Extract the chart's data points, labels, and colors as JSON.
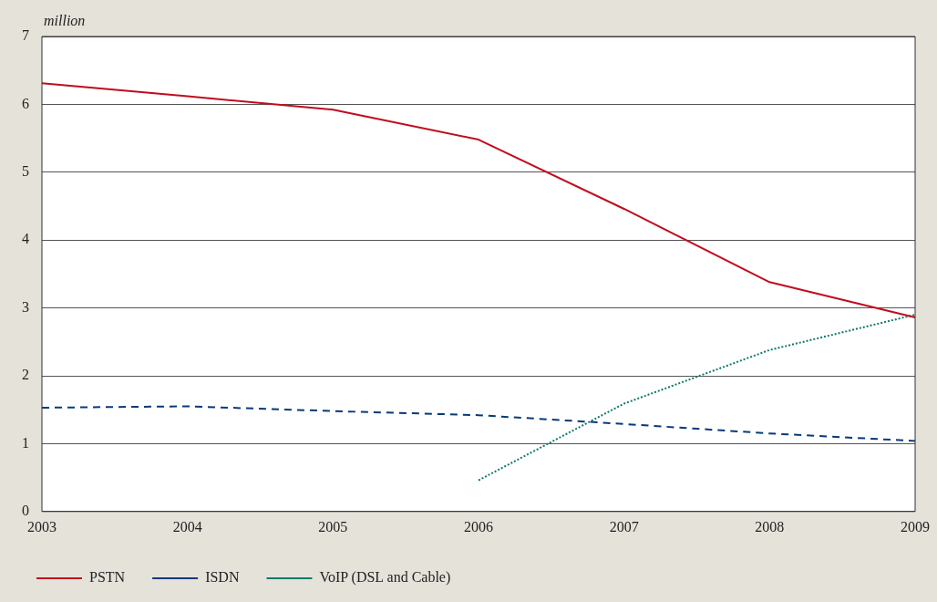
{
  "chart_data": {
    "type": "line",
    "ylabel": "million",
    "categories": [
      "2003",
      "2004",
      "2005",
      "2006",
      "2007",
      "2008",
      "2009"
    ],
    "series": [
      {
        "name": "PSTN",
        "color": "#c00d1e",
        "line_style": "solid",
        "values": [
          6.31,
          6.12,
          5.92,
          5.48,
          4.46,
          3.38,
          2.86
        ]
      },
      {
        "name": "ISDN",
        "color": "#063a7a",
        "line_style": "dashed",
        "values": [
          1.53,
          1.55,
          1.48,
          1.42,
          1.29,
          1.15,
          1.04
        ]
      },
      {
        "name": "VoIP (DSL and Cable)",
        "color": "#0f7a6a",
        "line_style": "dotted",
        "values": [
          null,
          null,
          null,
          0.46,
          1.59,
          2.38,
          2.9
        ]
      }
    ],
    "ylim": [
      0,
      7
    ],
    "yticks": [
      0,
      1,
      2,
      3,
      4,
      5,
      6,
      7
    ],
    "grid": "y",
    "legend": "bottom",
    "marker": "none"
  }
}
